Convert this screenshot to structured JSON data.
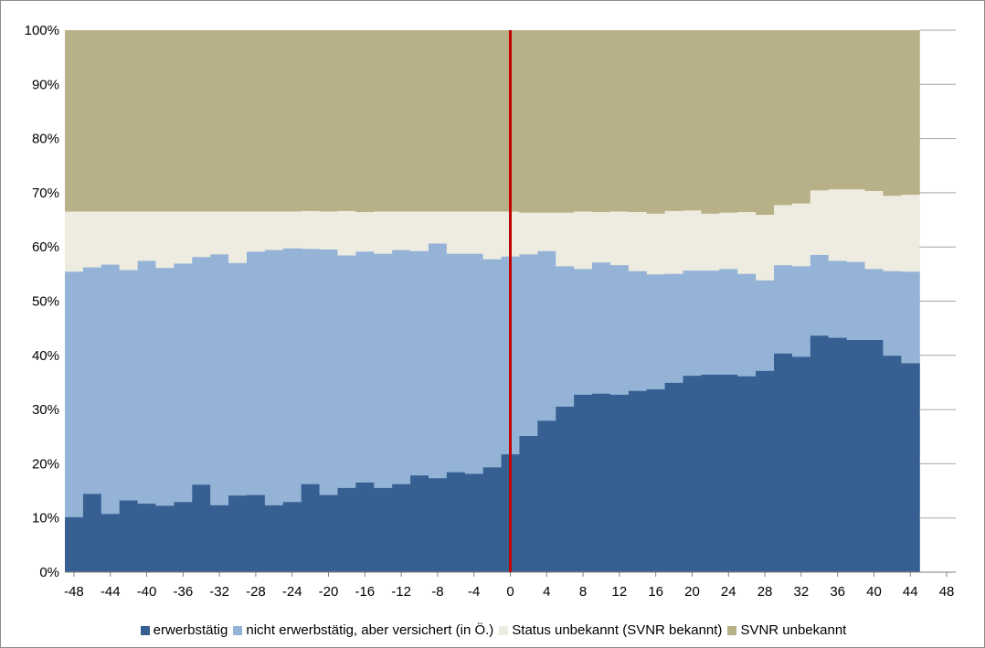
{
  "chart_data": {
    "type": "area",
    "stacked": true,
    "step": true,
    "x_ticks": [
      -48,
      -44,
      -40,
      -36,
      -32,
      -28,
      -24,
      -20,
      -16,
      -12,
      -8,
      -4,
      0,
      4,
      8,
      12,
      16,
      20,
      24,
      28,
      32,
      36,
      40,
      44,
      48
    ],
    "x_tick_labels": [
      "-48",
      "-44",
      "-40",
      "-36",
      "-32",
      "-28",
      "-24",
      "-20",
      "-16",
      "-12",
      "-8",
      "-4",
      "0",
      "4",
      "8",
      "12",
      "16",
      "20",
      "24",
      "28",
      "32",
      "36",
      "40",
      "44",
      "48"
    ],
    "xlim": [
      -49,
      49
    ],
    "y_ticks": [
      0,
      10,
      20,
      30,
      40,
      50,
      60,
      70,
      80,
      90,
      100
    ],
    "y_tick_labels": [
      "0%",
      "10%",
      "20%",
      "30%",
      "40%",
      "50%",
      "60%",
      "70%",
      "80%",
      "90%",
      "100%"
    ],
    "ylim": [
      0,
      100
    ],
    "grid": "horizontal",
    "legend": "bottom",
    "vline_x": 0,
    "vline_color": "#c00000",
    "x": [
      -49,
      -47,
      -45,
      -43,
      -41,
      -39,
      -37,
      -35,
      -33,
      -31,
      -29,
      -27,
      -25,
      -23,
      -21,
      -19,
      -17,
      -15,
      -13,
      -11,
      -9,
      -7,
      -5,
      -3,
      -1,
      1,
      3,
      5,
      7,
      9,
      11,
      13,
      15,
      17,
      19,
      21,
      23,
      25,
      27,
      29,
      31,
      33,
      35,
      37,
      39,
      41,
      43
    ],
    "series": [
      {
        "name": "erwerbstätig",
        "color": "#376092",
        "values": [
          10.2,
          14.5,
          10.8,
          13.3,
          12.7,
          12.3,
          13.0,
          16.2,
          12.4,
          14.2,
          14.3,
          12.4,
          13.0,
          16.3,
          14.3,
          15.6,
          16.6,
          15.6,
          16.3,
          17.9,
          17.4,
          18.5,
          18.2,
          19.4,
          21.8,
          25.2,
          28.0,
          30.6,
          32.8,
          33.0,
          32.8,
          33.5,
          33.8,
          35.0,
          36.3,
          36.5,
          36.5,
          36.2,
          37.2,
          40.4,
          39.8,
          43.7,
          43.3,
          42.9,
          42.9,
          40.0,
          38.6
        ]
      },
      {
        "name": "nicht erwerbstätig, aber versichert (in Ö.)",
        "color": "#95b3d7",
        "values": [
          45.3,
          41.8,
          46.0,
          42.5,
          44.8,
          43.9,
          44.0,
          42.0,
          46.3,
          42.9,
          44.9,
          47.1,
          46.8,
          43.4,
          45.3,
          42.9,
          42.6,
          43.2,
          43.2,
          41.4,
          43.3,
          40.3,
          40.6,
          38.4,
          36.5,
          33.5,
          31.3,
          25.9,
          23.2,
          24.2,
          23.9,
          22.1,
          21.2,
          20.1,
          19.4,
          19.2,
          19.5,
          18.9,
          16.7,
          16.3,
          16.7,
          14.9,
          14.2,
          14.4,
          13.1,
          15.6,
          16.9
        ]
      },
      {
        "name": "Status unbekannt (SVNR bekannt)",
        "color": "#eeece1",
        "values": [
          11.1,
          10.3,
          9.8,
          10.8,
          9.1,
          10.4,
          9.6,
          8.4,
          7.9,
          9.5,
          7.4,
          7.1,
          6.8,
          7.0,
          7.0,
          8.2,
          7.3,
          7.8,
          7.1,
          7.3,
          5.9,
          7.8,
          7.8,
          8.8,
          8.3,
          7.7,
          7.1,
          9.9,
          10.6,
          9.3,
          9.9,
          10.9,
          11.2,
          11.6,
          11.1,
          10.5,
          10.4,
          11.4,
          12.1,
          11.1,
          11.6,
          11.9,
          13.2,
          13.4,
          14.4,
          13.9,
          14.2
        ]
      },
      {
        "name": "SVNR unbekannt",
        "color": "#b8b087",
        "values": [
          33.4,
          33.4,
          33.4,
          33.4,
          33.4,
          33.4,
          33.4,
          33.4,
          33.4,
          33.4,
          33.4,
          33.4,
          33.4,
          33.3,
          33.4,
          33.3,
          33.5,
          33.4,
          33.4,
          33.4,
          33.4,
          33.4,
          33.4,
          33.4,
          33.4,
          33.6,
          33.6,
          33.6,
          33.4,
          33.5,
          33.4,
          33.5,
          33.8,
          33.3,
          33.2,
          33.8,
          33.6,
          33.5,
          34.0,
          32.2,
          31.9,
          29.5,
          29.3,
          29.3,
          29.6,
          30.5,
          30.3
        ]
      }
    ]
  }
}
